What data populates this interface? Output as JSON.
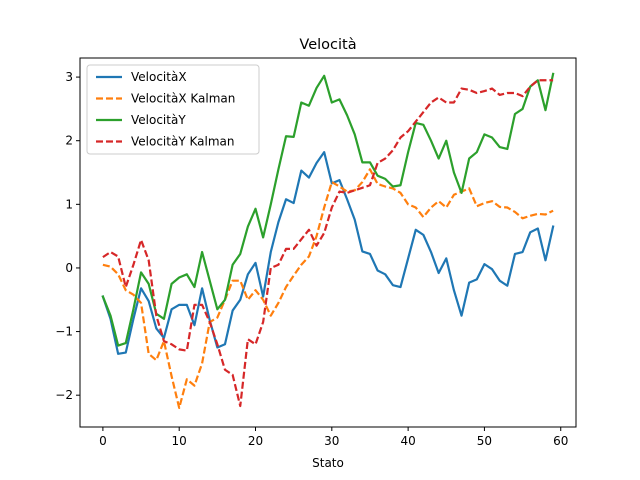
{
  "chart_data": {
    "type": "line",
    "title": "Velocità",
    "xlabel": "Stato",
    "ylabel": "",
    "xlim": [
      -3,
      62
    ],
    "ylim": [
      -2.5,
      3.3
    ],
    "xticks": [
      0,
      10,
      20,
      30,
      40,
      50,
      60
    ],
    "yticks": [
      -2,
      -1,
      0,
      1,
      2,
      3
    ],
    "legend_position": "top-left",
    "x": [
      0,
      1,
      2,
      3,
      4,
      5,
      6,
      7,
      8,
      9,
      10,
      11,
      12,
      13,
      14,
      15,
      16,
      17,
      18,
      19,
      20,
      21,
      22,
      23,
      24,
      25,
      26,
      27,
      28,
      29,
      30,
      31,
      32,
      33,
      34,
      35,
      36,
      37,
      38,
      39,
      40,
      41,
      42,
      43,
      44,
      45,
      46,
      47,
      48,
      49,
      50,
      51,
      52,
      53,
      54,
      55,
      56,
      57,
      58,
      59
    ],
    "series": [
      {
        "name": "VelocitàX",
        "color": "#1f77b4",
        "dashed": false,
        "values": [
          -0.45,
          -0.8,
          -1.35,
          -1.33,
          -0.8,
          -0.32,
          -0.52,
          -0.95,
          -1.1,
          -0.65,
          -0.58,
          -0.58,
          -0.9,
          -0.32,
          -0.82,
          -1.25,
          -1.2,
          -0.67,
          -0.5,
          -0.1,
          0.08,
          -0.45,
          0.25,
          0.72,
          1.08,
          1.02,
          1.53,
          1.42,
          1.65,
          1.82,
          1.33,
          1.38,
          1.08,
          0.76,
          0.26,
          0.22,
          -0.04,
          -0.1,
          -0.27,
          -0.3,
          0.15,
          0.6,
          0.52,
          0.25,
          -0.08,
          0.15,
          -0.35,
          -0.75,
          -0.23,
          -0.18,
          0.06,
          -0.02,
          -0.2,
          -0.28,
          0.22,
          0.25,
          0.56,
          0.62,
          0.12,
          0.65
        ]
      },
      {
        "name": "VelocitàX Kalman",
        "color": "#ff7f0e",
        "dashed": true,
        "values": [
          0.05,
          0.02,
          -0.1,
          -0.35,
          -0.42,
          -0.55,
          -1.35,
          -1.45,
          -1.15,
          -1.7,
          -2.2,
          -1.75,
          -1.85,
          -1.5,
          -0.85,
          -0.78,
          -0.5,
          -0.2,
          -0.2,
          -0.5,
          -0.35,
          -0.5,
          -0.75,
          -0.55,
          -0.3,
          -0.12,
          0.05,
          0.18,
          0.5,
          0.95,
          1.35,
          1.28,
          1.2,
          1.22,
          1.35,
          1.55,
          1.32,
          1.28,
          1.25,
          1.18,
          1.0,
          0.95,
          0.8,
          0.95,
          1.05,
          0.95,
          1.15,
          1.2,
          1.25,
          0.97,
          1.02,
          1.05,
          0.96,
          0.95,
          0.88,
          0.78,
          0.82,
          0.85,
          0.84,
          0.9
        ]
      },
      {
        "name": "VelocitàY",
        "color": "#2ca02c",
        "dashed": false,
        "values": [
          -0.45,
          -0.75,
          -1.22,
          -1.18,
          -0.65,
          -0.07,
          -0.25,
          -0.72,
          -0.8,
          -0.25,
          -0.15,
          -0.1,
          -0.3,
          0.25,
          -0.2,
          -0.65,
          -0.5,
          0.05,
          0.22,
          0.65,
          0.93,
          0.48,
          1.0,
          1.55,
          2.07,
          2.06,
          2.6,
          2.55,
          2.83,
          3.02,
          2.6,
          2.65,
          2.4,
          2.1,
          1.66,
          1.66,
          1.45,
          1.4,
          1.28,
          1.3,
          1.82,
          2.28,
          2.25,
          2.0,
          1.72,
          2.0,
          1.5,
          1.18,
          1.72,
          1.82,
          2.1,
          2.05,
          1.9,
          1.87,
          2.42,
          2.5,
          2.85,
          2.95,
          2.48,
          3.05
        ]
      },
      {
        "name": "VelocitàY Kalman",
        "color": "#d62728",
        "dashed": true,
        "values": [
          0.17,
          0.25,
          0.18,
          -0.3,
          0.05,
          0.44,
          0.12,
          -0.75,
          -1.15,
          -1.2,
          -1.28,
          -1.3,
          -0.58,
          -0.58,
          -0.85,
          -1.2,
          -1.6,
          -1.68,
          -2.17,
          -1.12,
          -1.2,
          -0.85,
          0.0,
          0.05,
          0.3,
          0.3,
          0.45,
          0.6,
          0.35,
          0.55,
          0.95,
          1.2,
          1.18,
          1.22,
          1.26,
          1.3,
          1.65,
          1.72,
          1.85,
          2.05,
          2.15,
          2.3,
          2.45,
          2.6,
          2.68,
          2.6,
          2.6,
          2.82,
          2.8,
          2.75,
          2.78,
          2.82,
          2.72,
          2.75,
          2.75,
          2.7,
          2.85,
          2.95,
          2.95,
          2.95
        ]
      }
    ]
  }
}
